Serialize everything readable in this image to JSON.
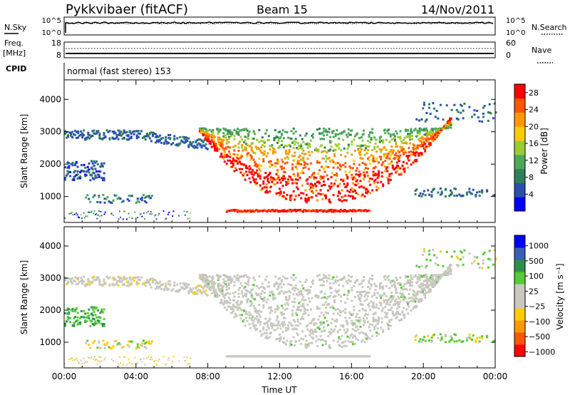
{
  "header": {
    "station": "Pykkvibaer (fitACF)",
    "beam": "Beam 15",
    "date": "14/Nov/2011"
  },
  "nsky_panel": {
    "left_label": "N.Sky",
    "right_label": "N.Search",
    "y_top_tick": "10^5",
    "y_bottom_tick": "10^0"
  },
  "freq_panel": {
    "left_label_1": "Freq.",
    "left_label_2": "[MHz]",
    "right_label": "Nave",
    "left_ticks": [
      "18",
      "8"
    ],
    "right_ticks": [
      "60",
      "0"
    ]
  },
  "cpid": {
    "label": "CPID",
    "value": "normal (fast stereo) 153"
  },
  "colors": {
    "power_scale": [
      "#0000ff",
      "#2a4fb0",
      "#2f7f5a",
      "#4ea85a",
      "#9acd32",
      "#ffcc00",
      "#ff9900",
      "#ff5500",
      "#ff0000"
    ],
    "velocity_scale": [
      "#0000ff",
      "#3a5fb5",
      "#2f8f4a",
      "#55cc33",
      "#c8c8c0",
      "#c8c8c0",
      "#ffcc00",
      "#ff9900",
      "#ff5500",
      "#ff0000"
    ]
  },
  "chart_data": [
    {
      "type": "heatmap",
      "panel": "power",
      "ylabel": "Slant Range [km]",
      "yticks": [
        1000,
        2000,
        3000,
        4000
      ],
      "ylim": [
        200,
        4600
      ],
      "xlim": [
        0,
        24
      ],
      "xticks": [
        "00:00",
        "04:00",
        "08:00",
        "12:00",
        "16:00",
        "20:00",
        "00:00"
      ],
      "colorbar_label": "Power [dB]",
      "colorbar_ticks": [
        "4",
        "8",
        "12",
        "16",
        "20",
        "24",
        "28"
      ],
      "colorbar_range": [
        0,
        30
      ]
    },
    {
      "type": "heatmap",
      "panel": "velocity",
      "ylabel": "Slant Range [km]",
      "yticks": [
        1000,
        2000,
        3000,
        4000
      ],
      "ylim": [
        200,
        4600
      ],
      "xlim": [
        0,
        24
      ],
      "xticks": [
        "00:00",
        "04:00",
        "08:00",
        "12:00",
        "16:00",
        "20:00",
        "00:00"
      ],
      "xlabel": "Time UT",
      "colorbar_label": "Velocity [m s⁻¹]",
      "colorbar_ticks": [
        "1000",
        "500",
        "100",
        "25",
        "−25",
        "−100",
        "−500",
        "−1000"
      ]
    }
  ]
}
